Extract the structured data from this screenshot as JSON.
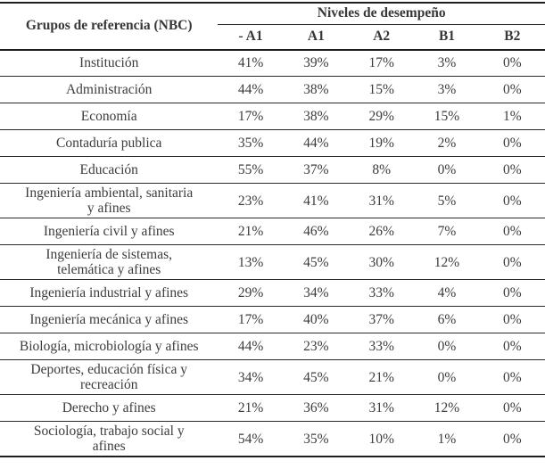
{
  "table": {
    "ref_header": "Grupos de referencia (NBC)",
    "group_header": "Niveles de desempeño",
    "level_columns": [
      "- A1",
      "A1",
      "A2",
      "B1",
      "B2"
    ],
    "rows": [
      {
        "label": "Institución",
        "values": [
          "41%",
          "39%",
          "17%",
          "3%",
          "0%"
        ]
      },
      {
        "label": "Administración",
        "values": [
          "44%",
          "38%",
          "15%",
          "3%",
          "0%"
        ]
      },
      {
        "label": "Economía",
        "values": [
          "17%",
          "38%",
          "29%",
          "15%",
          "1%"
        ]
      },
      {
        "label": "Contaduría publica",
        "values": [
          "35%",
          "44%",
          "19%",
          "2%",
          "0%"
        ]
      },
      {
        "label": "Educación",
        "values": [
          "55%",
          "37%",
          "8%",
          "0%",
          "0%"
        ]
      },
      {
        "label": "Ingeniería ambiental, sanitaria\ny afines",
        "values": [
          "23%",
          "41%",
          "31%",
          "5%",
          "0%"
        ]
      },
      {
        "label": "Ingeniería civil y afines",
        "values": [
          "21%",
          "46%",
          "26%",
          "7%",
          "0%"
        ]
      },
      {
        "label": "Ingeniería de sistemas,\ntelemática y afines",
        "values": [
          "13%",
          "45%",
          "30%",
          "12%",
          "0%"
        ]
      },
      {
        "label": "Ingeniería industrial y afines",
        "values": [
          "29%",
          "34%",
          "33%",
          "4%",
          "0%"
        ]
      },
      {
        "label": "Ingeniería mecánica y afines",
        "values": [
          "17%",
          "40%",
          "37%",
          "6%",
          "0%"
        ]
      },
      {
        "label": "Biología, microbiología y afines",
        "values": [
          "44%",
          "23%",
          "33%",
          "0%",
          "0%"
        ]
      },
      {
        "label": "Deportes, educación física y\nrecreación",
        "values": [
          "34%",
          "45%",
          "21%",
          "0%",
          "0%"
        ]
      },
      {
        "label": "Derecho y afines",
        "values": [
          "21%",
          "36%",
          "31%",
          "12%",
          "0%"
        ]
      },
      {
        "label": "Sociología, trabajo social y\nafines",
        "values": [
          "54%",
          "35%",
          "10%",
          "1%",
          "0%"
        ]
      }
    ]
  }
}
